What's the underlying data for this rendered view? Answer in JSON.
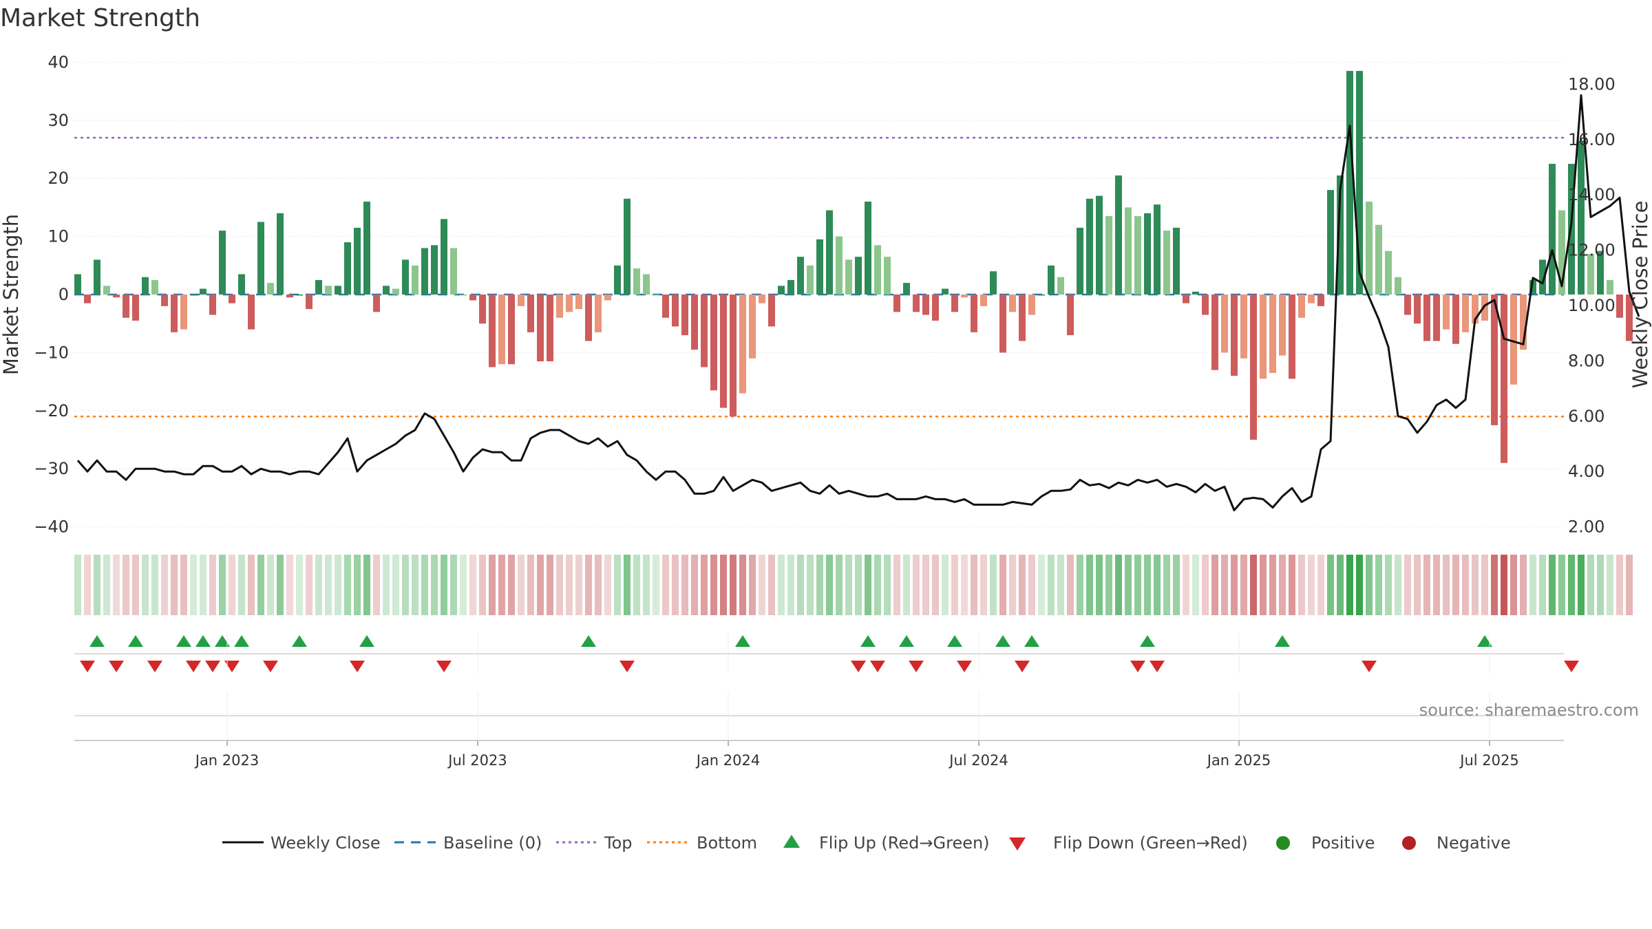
{
  "title": "Market Strength",
  "source": "source: sharemaestro.com",
  "colors": {
    "strong_pos": "#2e8b57",
    "weak_pos": "#8cc68c",
    "strong_neg": "#cd5c5c",
    "weak_neg": "#e9967a",
    "close_line": "#111111",
    "baseline": "#1f77b4",
    "top": "#9467bd",
    "bottom": "#ff7f0e",
    "flip_up": "#22a045",
    "flip_down": "#d62728",
    "positive": "#228b22",
    "negative": "#b22222"
  },
  "chart_data": {
    "type": "bar+line",
    "title": "Market Strength",
    "ylabel": "Market Strength",
    "y2label": "Weekly Close Price",
    "ylim": [
      -43,
      43
    ],
    "y2lim": [
      1.0,
      19.0
    ],
    "yticks": [
      "40",
      "30",
      "20",
      "10",
      "0",
      "−10",
      "−20",
      "−30",
      "−40"
    ],
    "y2ticks": [
      "18.00",
      "16.00",
      "14.00",
      "12.00",
      "10.00",
      "8.00",
      "6.00",
      "4.00",
      "2.00"
    ],
    "x_start": "2022-09-16",
    "x_step_weeks": 1,
    "xticks": [
      {
        "label": "Jan 2023",
        "week": 15.5
      },
      {
        "label": "Jul 2023",
        "week": 41.5
      },
      {
        "label": "Jan 2024",
        "week": 67.5
      },
      {
        "label": "Jul 2024",
        "week": 93.5
      },
      {
        "label": "Jan 2025",
        "week": 120.5
      },
      {
        "label": "Jul 2025",
        "week": 146.5
      }
    ],
    "top_line": 27,
    "bottom_line": -21,
    "baseline": 0,
    "strength": [
      3.5,
      -1.5,
      6,
      1.5,
      -0.5,
      -4,
      -4.5,
      3,
      2.5,
      -2,
      -6.5,
      -6,
      0,
      1,
      -3.5,
      11,
      -1.5,
      3.5,
      -6,
      12.5,
      2,
      14,
      -0.5,
      0,
      -2.5,
      2.5,
      1.5,
      1.5,
      9,
      11.5,
      16,
      -3,
      1.5,
      1,
      6,
      5,
      8,
      8.5,
      13,
      8,
      0,
      -1,
      -5,
      -12.5,
      -12,
      -12,
      -2,
      -6.5,
      -11.5,
      -11.5,
      -4,
      -3,
      -2.5,
      -8,
      -6.5,
      -1,
      5,
      16.5,
      4.5,
      3.5,
      0,
      -4,
      -5.5,
      -7,
      -9.5,
      -12.5,
      -16.5,
      -19.5,
      -21,
      -17,
      -11,
      -1.5,
      -5.5,
      1.5,
      2.5,
      6.5,
      5,
      9.5,
      14.5,
      10,
      6,
      6.5,
      16,
      8.5,
      6.5,
      -3,
      2,
      -3,
      -3.5,
      -4.5,
      1,
      -3,
      -0.5,
      -6.5,
      -2,
      4,
      -10,
      -3,
      -8,
      -3.5,
      0,
      5,
      3,
      -7,
      11.5,
      16.5,
      17,
      13.5,
      20.5,
      15,
      13.5,
      14,
      15.5,
      11,
      11.5,
      -1.5,
      0.5,
      -3.5,
      -13,
      -10,
      -14,
      -11,
      -25,
      -14.5,
      -13.5,
      -10.5,
      -14.5,
      -4,
      -1.5,
      -2,
      18,
      20.5,
      38.5,
      38.5,
      16,
      12,
      7.5,
      3,
      -3.5,
      -5,
      -8,
      -8,
      -6,
      -8.5,
      -6.5,
      -5,
      -4.5,
      -22.5,
      -29,
      -15.5,
      -9.5,
      2.5,
      6,
      22.5,
      14.5,
      22.5,
      26.5,
      7,
      7.5,
      2.5,
      -4,
      -8
    ],
    "weekly_close": [
      4.4,
      4.0,
      4.4,
      4.0,
      4.0,
      3.7,
      4.1,
      4.1,
      4.1,
      4.0,
      4.0,
      3.9,
      3.9,
      4.2,
      4.2,
      4.0,
      4.0,
      4.2,
      3.9,
      4.1,
      4.0,
      4.0,
      3.9,
      4.0,
      4.0,
      3.9,
      4.3,
      4.7,
      5.2,
      4.0,
      4.4,
      4.6,
      4.8,
      5.0,
      5.3,
      5.5,
      6.1,
      5.9,
      5.3,
      4.7,
      4.0,
      4.5,
      4.8,
      4.7,
      4.7,
      4.4,
      4.4,
      5.2,
      5.4,
      5.5,
      5.5,
      5.3,
      5.1,
      5.0,
      5.2,
      4.9,
      5.1,
      4.6,
      4.4,
      4.0,
      3.7,
      4.0,
      4.0,
      3.7,
      3.2,
      3.2,
      3.3,
      3.8,
      3.3,
      3.5,
      3.7,
      3.6,
      3.3,
      3.4,
      3.5,
      3.6,
      3.3,
      3.2,
      3.5,
      3.2,
      3.3,
      3.2,
      3.1,
      3.1,
      3.2,
      3.0,
      3.0,
      3.0,
      3.1,
      3.0,
      3.0,
      2.9,
      3.0,
      2.8,
      2.8,
      2.8,
      2.8,
      2.9,
      2.85,
      2.8,
      3.1,
      3.3,
      3.3,
      3.35,
      3.7,
      3.5,
      3.55,
      3.4,
      3.6,
      3.5,
      3.7,
      3.6,
      3.7,
      3.45,
      3.55,
      3.45,
      3.25,
      3.55,
      3.3,
      3.45,
      2.6,
      3.0,
      3.05,
      3.0,
      2.7,
      3.1,
      3.4,
      2.9,
      3.1,
      4.8,
      5.1,
      14.2,
      16.5,
      11.2,
      10.3,
      9.5,
      8.5,
      6.0,
      5.9,
      5.4,
      5.8,
      6.4,
      6.6,
      6.3,
      6.6,
      9.5,
      10.0,
      10.2,
      8.8,
      8.7,
      8.6,
      11.0,
      10.8,
      12.0,
      10.7,
      13.0,
      17.6,
      13.2,
      13.4,
      13.6,
      13.9,
      10.5,
      9.6
    ],
    "flip_up_weeks": [
      2,
      6,
      11,
      13,
      15,
      17,
      23,
      30,
      53,
      69,
      82,
      86,
      91,
      96,
      99,
      111,
      125,
      146
    ],
    "flip_down_weeks": [
      1,
      4,
      8,
      12,
      14,
      16,
      20,
      29,
      38,
      57,
      81,
      83,
      87,
      92,
      98,
      110,
      112,
      134,
      155
    ],
    "legend": [
      "Weekly Close",
      "Baseline (0)",
      "Top",
      "Bottom",
      "Flip Up (Red→Green)",
      "Flip Down (Green→Red)",
      "Positive",
      "Negative"
    ]
  }
}
